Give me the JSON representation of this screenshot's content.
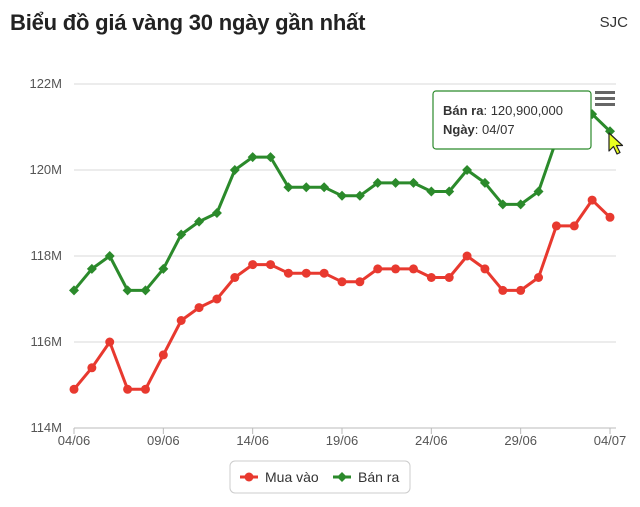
{
  "header": {
    "title": "Biểu đồ giá vàng 30 ngày gần nhất",
    "brand": "SJC"
  },
  "colors": {
    "buy": "#e8392f",
    "sell": "#2b8a2b",
    "grid": "#d8d8d8",
    "tooltip_border": "#2b8a2b"
  },
  "tooltip": {
    "label_sell": "Bán ra",
    "value": "120,900,000",
    "label_date": "Ngày",
    "date": "04/07"
  },
  "menu": {
    "icon": "hamburger-menu-icon"
  },
  "chart_data": {
    "type": "line",
    "ylim": [
      114,
      122
    ],
    "y_ticks": [
      {
        "value": 122,
        "label": "122M"
      },
      {
        "value": 120,
        "label": "120M"
      },
      {
        "value": 118,
        "label": "118M"
      },
      {
        "value": 116,
        "label": "116M"
      },
      {
        "value": 114,
        "label": "114M"
      }
    ],
    "x": [
      "04/06",
      "05/06",
      "06/06",
      "07/06",
      "08/06",
      "09/06",
      "10/06",
      "11/06",
      "12/06",
      "13/06",
      "14/06",
      "15/06",
      "16/06",
      "17/06",
      "18/06",
      "19/06",
      "20/06",
      "21/06",
      "22/06",
      "23/06",
      "24/06",
      "25/06",
      "26/06",
      "27/06",
      "28/06",
      "29/06",
      "30/06",
      "01/07",
      "02/07",
      "03/07",
      "04/07"
    ],
    "x_tick_labels": [
      "04/06",
      "09/06",
      "14/06",
      "19/06",
      "24/06",
      "29/06",
      "04/07"
    ],
    "series": [
      {
        "name": "Mua vào",
        "values": [
          114.9,
          115.4,
          116.0,
          114.9,
          114.9,
          115.7,
          116.5,
          116.8,
          117.0,
          117.5,
          117.8,
          117.8,
          117.6,
          117.6,
          117.6,
          117.4,
          117.4,
          117.7,
          117.7,
          117.7,
          117.5,
          117.5,
          118.0,
          117.7,
          117.2,
          117.2,
          117.5,
          118.7,
          118.7,
          119.3,
          118.9
        ]
      },
      {
        "name": "Bán ra",
        "values": [
          117.2,
          117.7,
          118.0,
          117.2,
          117.2,
          117.7,
          118.5,
          118.8,
          119.0,
          120.0,
          120.3,
          120.3,
          119.6,
          119.6,
          119.6,
          119.4,
          119.4,
          119.7,
          119.7,
          119.7,
          119.5,
          119.5,
          120.0,
          119.7,
          119.2,
          119.2,
          119.5,
          120.7,
          120.7,
          121.3,
          120.9
        ]
      }
    ],
    "grid": true,
    "legend": "bottom-center"
  }
}
